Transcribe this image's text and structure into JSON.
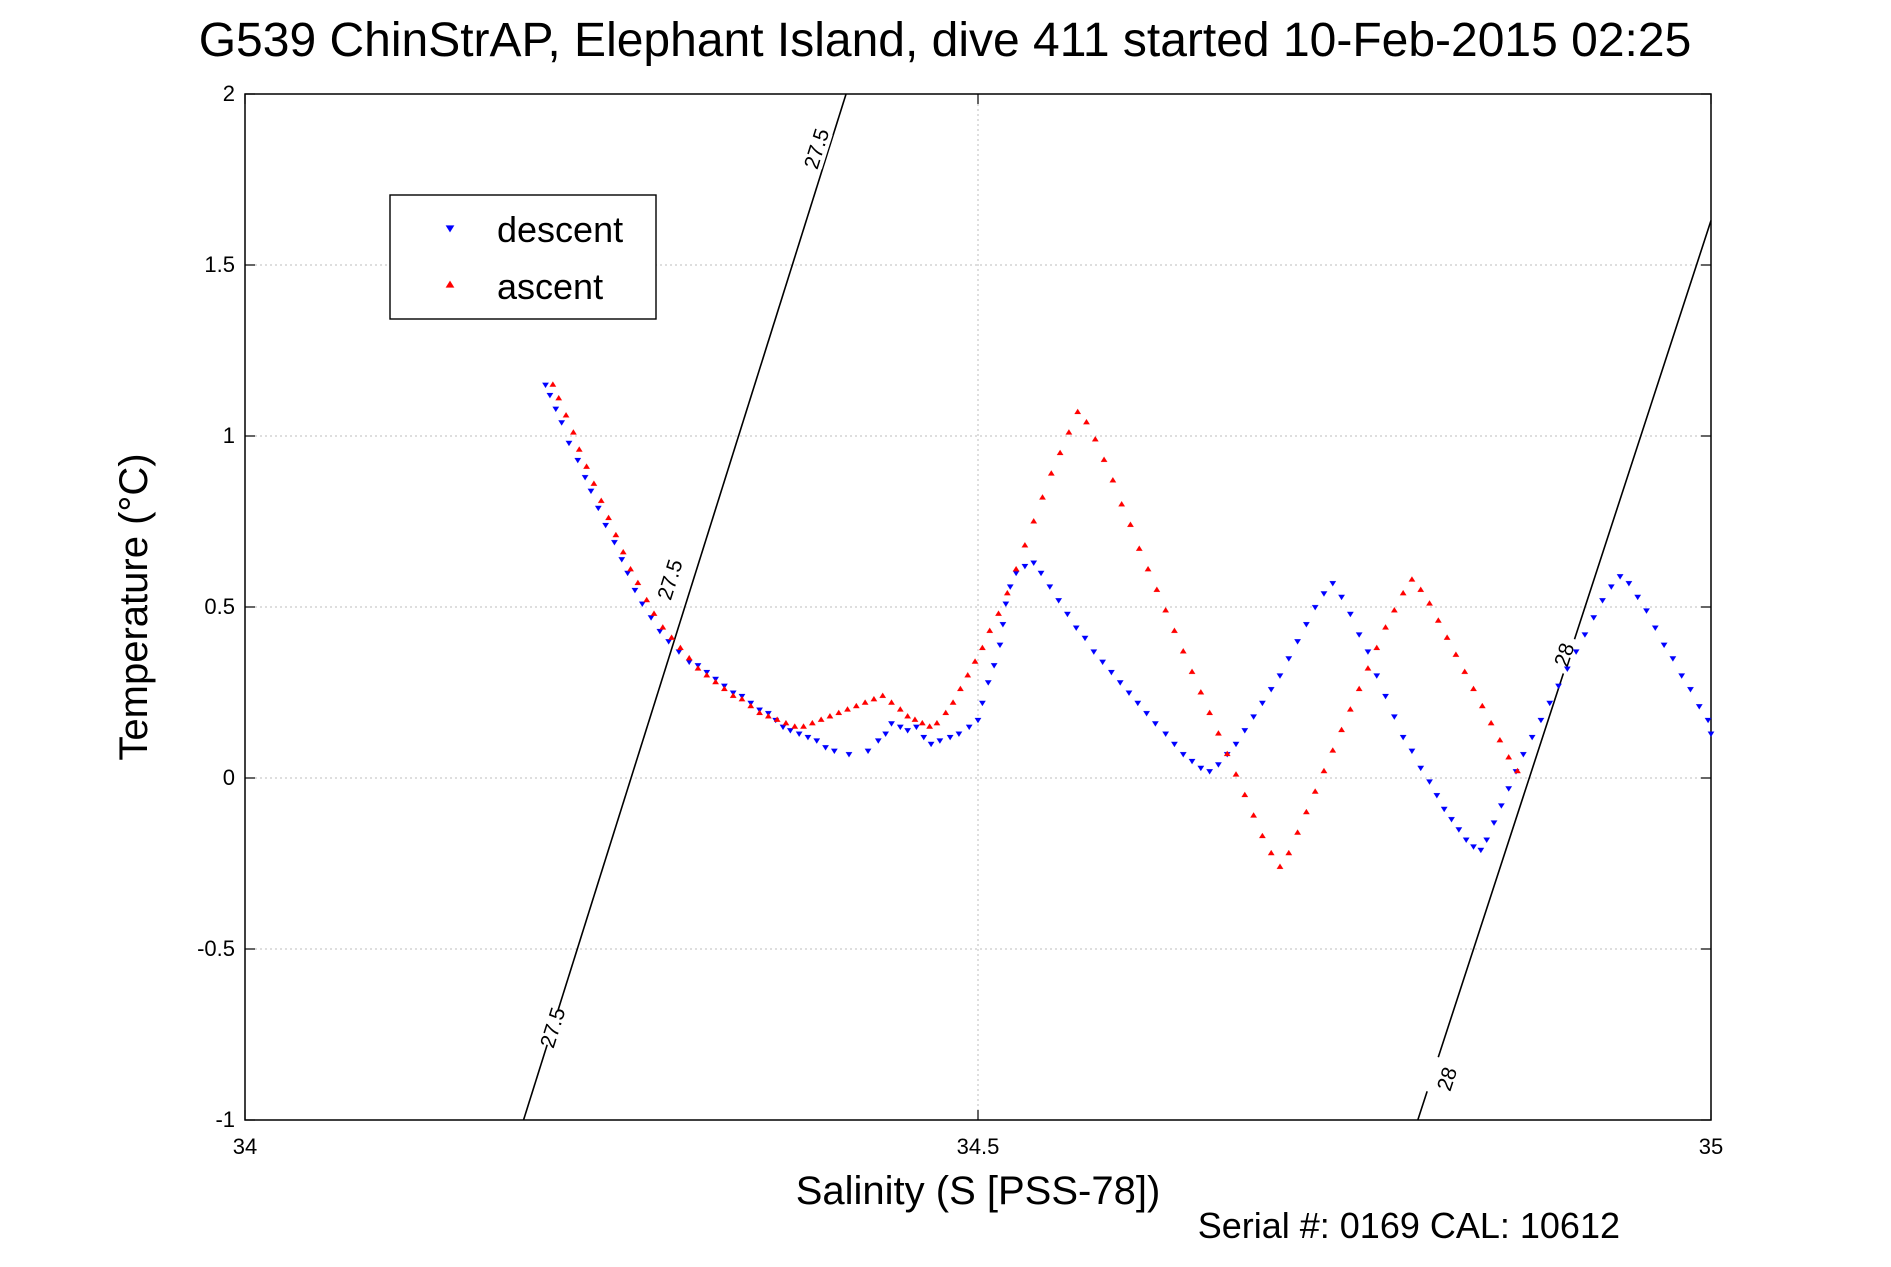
{
  "figure": {
    "title": "G539 ChinStrAP, Elephant Island, dive 411 started 10-Feb-2015 02:25",
    "footer": "Serial #: 0169 CAL: 10612"
  },
  "chart_data": {
    "type": "scatter",
    "title": "G539 ChinStrAP, Elephant Island, dive 411 started 10-Feb-2015 02:25",
    "xlabel": "Salinity (S [PSS-78])",
    "ylabel": "Temperature (°C)",
    "xlim": [
      34,
      35
    ],
    "ylim": [
      -1,
      2
    ],
    "x_ticks": [
      34,
      34.5,
      35
    ],
    "x_tick_labels": [
      "34",
      "34.5",
      "35"
    ],
    "y_ticks": [
      -1,
      -0.5,
      0,
      0.5,
      1,
      1.5,
      2
    ],
    "y_tick_labels": [
      "-1",
      "-0.5",
      "0",
      "0.5",
      "1",
      "1.5",
      "2"
    ],
    "grid": true,
    "legend_position": "top-left",
    "series": [
      {
        "name": "descent",
        "color": "#0000ff",
        "marker": "triangle-down",
        "points": [
          [
            34.205,
            1.15
          ],
          [
            34.208,
            1.12
          ],
          [
            34.212,
            1.08
          ],
          [
            34.216,
            1.04
          ],
          [
            34.221,
            0.98
          ],
          [
            34.227,
            0.93
          ],
          [
            34.232,
            0.88
          ],
          [
            34.236,
            0.84
          ],
          [
            34.241,
            0.79
          ],
          [
            34.246,
            0.74
          ],
          [
            34.252,
            0.69
          ],
          [
            34.257,
            0.64
          ],
          [
            34.261,
            0.6
          ],
          [
            34.266,
            0.55
          ],
          [
            34.271,
            0.51
          ],
          [
            34.277,
            0.47
          ],
          [
            34.283,
            0.43
          ],
          [
            34.289,
            0.4
          ],
          [
            34.296,
            0.37
          ],
          [
            34.303,
            0.34
          ],
          [
            34.309,
            0.33
          ],
          [
            34.315,
            0.31
          ],
          [
            34.321,
            0.29
          ],
          [
            34.327,
            0.27
          ],
          [
            34.333,
            0.25
          ],
          [
            34.339,
            0.24
          ],
          [
            34.345,
            0.22
          ],
          [
            34.351,
            0.2
          ],
          [
            34.357,
            0.19
          ],
          [
            34.362,
            0.17
          ],
          [
            34.367,
            0.15
          ],
          [
            34.372,
            0.14
          ],
          [
            34.378,
            0.13
          ],
          [
            34.384,
            0.12
          ],
          [
            34.39,
            0.11
          ],
          [
            34.396,
            0.09
          ],
          [
            34.402,
            0.08
          ],
          [
            34.412,
            0.07
          ],
          [
            34.425,
            0.08
          ],
          [
            34.432,
            0.11
          ],
          [
            34.437,
            0.13
          ],
          [
            34.441,
            0.16
          ],
          [
            34.447,
            0.15
          ],
          [
            34.452,
            0.14
          ],
          [
            34.458,
            0.15
          ],
          [
            34.463,
            0.12
          ],
          [
            34.468,
            0.1
          ],
          [
            34.474,
            0.11
          ],
          [
            34.481,
            0.12
          ],
          [
            34.487,
            0.13
          ],
          [
            34.494,
            0.15
          ],
          [
            34.5,
            0.17
          ],
          [
            34.503,
            0.22
          ],
          [
            34.507,
            0.28
          ],
          [
            34.511,
            0.33
          ],
          [
            34.515,
            0.39
          ],
          [
            34.517,
            0.45
          ],
          [
            34.519,
            0.51
          ],
          [
            34.522,
            0.56
          ],
          [
            34.526,
            0.6
          ],
          [
            34.532,
            0.62
          ],
          [
            34.538,
            0.63
          ],
          [
            34.543,
            0.6
          ],
          [
            34.549,
            0.56
          ],
          [
            34.555,
            0.52
          ],
          [
            34.561,
            0.48
          ],
          [
            34.567,
            0.44
          ],
          [
            34.573,
            0.41
          ],
          [
            34.579,
            0.37
          ],
          [
            34.585,
            0.34
          ],
          [
            34.591,
            0.31
          ],
          [
            34.597,
            0.28
          ],
          [
            34.603,
            0.25
          ],
          [
            34.609,
            0.22
          ],
          [
            34.615,
            0.19
          ],
          [
            34.621,
            0.16
          ],
          [
            34.628,
            0.13
          ],
          [
            34.634,
            0.1
          ],
          [
            34.64,
            0.07
          ],
          [
            34.646,
            0.05
          ],
          [
            34.652,
            0.03
          ],
          [
            34.658,
            0.02
          ],
          [
            34.664,
            0.04
          ],
          [
            34.67,
            0.07
          ],
          [
            34.676,
            0.1
          ],
          [
            34.682,
            0.14
          ],
          [
            34.688,
            0.18
          ],
          [
            34.694,
            0.22
          ],
          [
            34.7,
            0.26
          ],
          [
            34.706,
            0.3
          ],
          [
            34.712,
            0.35
          ],
          [
            34.718,
            0.4
          ],
          [
            34.724,
            0.45
          ],
          [
            34.73,
            0.5
          ],
          [
            34.736,
            0.54
          ],
          [
            34.742,
            0.57
          ],
          [
            34.748,
            0.53
          ],
          [
            34.754,
            0.48
          ],
          [
            34.76,
            0.42
          ],
          [
            34.766,
            0.37
          ],
          [
            34.772,
            0.3
          ],
          [
            34.778,
            0.24
          ],
          [
            34.784,
            0.18
          ],
          [
            34.79,
            0.12
          ],
          [
            34.796,
            0.08
          ],
          [
            34.802,
            0.03
          ],
          [
            34.808,
            -0.01
          ],
          [
            34.813,
            -0.05
          ],
          [
            34.818,
            -0.09
          ],
          [
            34.823,
            -0.12
          ],
          [
            34.828,
            -0.15
          ],
          [
            34.833,
            -0.18
          ],
          [
            34.838,
            -0.2
          ],
          [
            34.843,
            -0.21
          ],
          [
            34.847,
            -0.18
          ],
          [
            34.852,
            -0.13
          ],
          [
            34.857,
            -0.08
          ],
          [
            34.862,
            -0.03
          ],
          [
            34.867,
            0.02
          ],
          [
            34.872,
            0.07
          ],
          [
            34.878,
            0.12
          ],
          [
            34.884,
            0.17
          ],
          [
            34.89,
            0.22
          ],
          [
            34.896,
            0.27
          ],
          [
            34.902,
            0.32
          ],
          [
            34.908,
            0.37
          ],
          [
            34.914,
            0.42
          ],
          [
            34.92,
            0.47
          ],
          [
            34.926,
            0.52
          ],
          [
            34.932,
            0.56
          ],
          [
            34.938,
            0.59
          ],
          [
            34.944,
            0.57
          ],
          [
            34.95,
            0.53
          ],
          [
            34.956,
            0.49
          ],
          [
            34.962,
            0.44
          ],
          [
            34.968,
            0.39
          ],
          [
            34.974,
            0.35
          ],
          [
            34.98,
            0.3
          ],
          [
            34.986,
            0.26
          ],
          [
            34.992,
            0.21
          ],
          [
            34.998,
            0.17
          ],
          [
            35.0,
            0.13
          ]
        ]
      },
      {
        "name": "ascent",
        "color": "#ff0000",
        "marker": "triangle-up",
        "points": [
          [
            34.21,
            1.15
          ],
          [
            34.214,
            1.11
          ],
          [
            34.219,
            1.06
          ],
          [
            34.224,
            1.01
          ],
          [
            34.228,
            0.96
          ],
          [
            34.233,
            0.91
          ],
          [
            34.238,
            0.86
          ],
          [
            34.243,
            0.81
          ],
          [
            34.248,
            0.76
          ],
          [
            34.253,
            0.71
          ],
          [
            34.258,
            0.66
          ],
          [
            34.263,
            0.61
          ],
          [
            34.268,
            0.57
          ],
          [
            34.274,
            0.52
          ],
          [
            34.279,
            0.48
          ],
          [
            34.285,
            0.44
          ],
          [
            34.291,
            0.41
          ],
          [
            34.297,
            0.38
          ],
          [
            34.303,
            0.35
          ],
          [
            34.309,
            0.32
          ],
          [
            34.315,
            0.3
          ],
          [
            34.321,
            0.28
          ],
          [
            34.327,
            0.26
          ],
          [
            34.333,
            0.24
          ],
          [
            34.339,
            0.23
          ],
          [
            34.345,
            0.21
          ],
          [
            34.351,
            0.19
          ],
          [
            34.357,
            0.18
          ],
          [
            34.363,
            0.17
          ],
          [
            34.369,
            0.16
          ],
          [
            34.375,
            0.15
          ],
          [
            34.381,
            0.15
          ],
          [
            34.387,
            0.16
          ],
          [
            34.393,
            0.17
          ],
          [
            34.399,
            0.18
          ],
          [
            34.405,
            0.19
          ],
          [
            34.411,
            0.2
          ],
          [
            34.417,
            0.21
          ],
          [
            34.423,
            0.22
          ],
          [
            34.429,
            0.23
          ],
          [
            34.435,
            0.24
          ],
          [
            34.441,
            0.22
          ],
          [
            34.447,
            0.2
          ],
          [
            34.452,
            0.18
          ],
          [
            34.457,
            0.17
          ],
          [
            34.462,
            0.16
          ],
          [
            34.467,
            0.15
          ],
          [
            34.472,
            0.16
          ],
          [
            34.478,
            0.19
          ],
          [
            34.483,
            0.22
          ],
          [
            34.488,
            0.26
          ],
          [
            34.493,
            0.3
          ],
          [
            34.498,
            0.34
          ],
          [
            34.503,
            0.38
          ],
          [
            34.508,
            0.43
          ],
          [
            34.514,
            0.48
          ],
          [
            34.52,
            0.54
          ],
          [
            34.526,
            0.61
          ],
          [
            34.532,
            0.68
          ],
          [
            34.538,
            0.75
          ],
          [
            34.544,
            0.82
          ],
          [
            34.55,
            0.89
          ],
          [
            34.556,
            0.95
          ],
          [
            34.562,
            1.01
          ],
          [
            34.568,
            1.07
          ],
          [
            34.574,
            1.04
          ],
          [
            34.58,
            0.99
          ],
          [
            34.586,
            0.93
          ],
          [
            34.592,
            0.87
          ],
          [
            34.598,
            0.8
          ],
          [
            34.604,
            0.74
          ],
          [
            34.61,
            0.67
          ],
          [
            34.616,
            0.61
          ],
          [
            34.622,
            0.55
          ],
          [
            34.628,
            0.49
          ],
          [
            34.634,
            0.43
          ],
          [
            34.64,
            0.37
          ],
          [
            34.646,
            0.31
          ],
          [
            34.652,
            0.25
          ],
          [
            34.658,
            0.19
          ],
          [
            34.664,
            0.13
          ],
          [
            34.67,
            0.07
          ],
          [
            34.676,
            0.01
          ],
          [
            34.682,
            -0.05
          ],
          [
            34.688,
            -0.11
          ],
          [
            34.694,
            -0.17
          ],
          [
            34.7,
            -0.22
          ],
          [
            34.706,
            -0.26
          ],
          [
            34.712,
            -0.22
          ],
          [
            34.718,
            -0.16
          ],
          [
            34.724,
            -0.1
          ],
          [
            34.73,
            -0.04
          ],
          [
            34.736,
            0.02
          ],
          [
            34.742,
            0.08
          ],
          [
            34.748,
            0.14
          ],
          [
            34.754,
            0.2
          ],
          [
            34.76,
            0.26
          ],
          [
            34.766,
            0.32
          ],
          [
            34.772,
            0.38
          ],
          [
            34.778,
            0.44
          ],
          [
            34.784,
            0.49
          ],
          [
            34.79,
            0.54
          ],
          [
            34.796,
            0.58
          ],
          [
            34.802,
            0.55
          ],
          [
            34.808,
            0.51
          ],
          [
            34.814,
            0.46
          ],
          [
            34.82,
            0.41
          ],
          [
            34.826,
            0.36
          ],
          [
            34.832,
            0.31
          ],
          [
            34.838,
            0.26
          ],
          [
            34.844,
            0.21
          ],
          [
            34.85,
            0.16
          ],
          [
            34.856,
            0.11
          ],
          [
            34.862,
            0.06
          ],
          [
            34.868,
            0.02
          ]
        ]
      }
    ],
    "density_contours": [
      {
        "level_label": "27.5",
        "x_start": 34.19,
        "x_end": 34.41,
        "y_start": -1,
        "y_end": 2,
        "labels": [
          {
            "text": "27.5",
            "x": 34.21,
            "y": -0.73
          },
          {
            "text": "27.5",
            "x": 34.29,
            "y": 0.58
          },
          {
            "text": "27.5",
            "x": 34.39,
            "y": 1.84
          }
        ]
      },
      {
        "level_label": "28",
        "x_start": 34.8,
        "x_end": 35.0,
        "y_start": -1,
        "y_end": 1.63,
        "labels": [
          {
            "text": "28",
            "x": 34.82,
            "y": -0.88
          },
          {
            "text": "28",
            "x": 34.9,
            "y": 0.36
          }
        ]
      }
    ]
  }
}
